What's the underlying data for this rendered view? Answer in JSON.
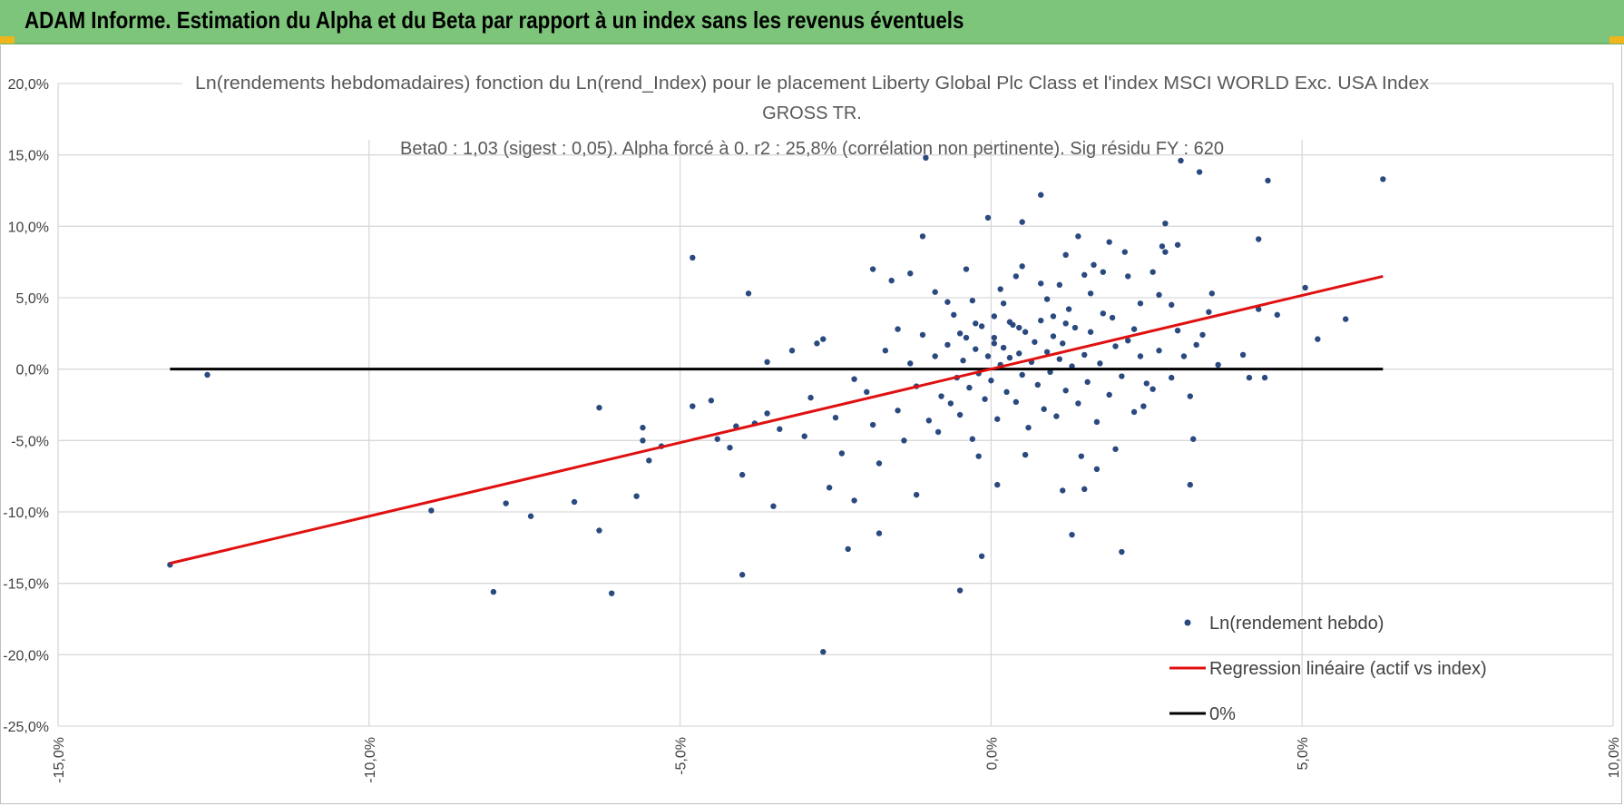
{
  "header": {
    "title": "ADAM Informe. Estimation du Alpha et du Beta par rapport à un index sans les revenus éventuels"
  },
  "colors": {
    "header_bg": "#7dc57a",
    "points": "#2a4a7f",
    "regression": "#e01010",
    "zero_line": "#000000",
    "grid": "#d9d9d9"
  },
  "chart_data": {
    "type": "scatter",
    "title_lines": [
      "Ln(rendements hebdomadaires) fonction du Ln(rend_Index) pour le placement Liberty Global Plc Class  et l'index MSCI  WORLD Exc. USA Index",
      "GROSS TR.",
      "Beta0 : 1,03  (sigest : 0,05). Alpha forcé à 0. r2 : 25,8% (corrélation non pertinente). Sig résidu FY : 620"
    ],
    "xlim": [
      -15,
      10
    ],
    "ylim": [
      -25,
      20
    ],
    "x_ticks": [
      -15,
      -10,
      -5,
      0,
      5,
      10
    ],
    "y_ticks": [
      20,
      15,
      10,
      5,
      0,
      -5,
      -10,
      -15,
      -20,
      -25
    ],
    "x_tick_labels": [
      "-15,0%",
      "-10,0%",
      "-5,0%",
      "0,0%",
      "5,0%",
      "10,0%"
    ],
    "y_tick_labels": [
      "20,0%",
      "15,0%",
      "10,0%",
      "5,0%",
      "0,0%",
      "-5,0%",
      "-10,0%",
      "-15,0%",
      "-20,0%",
      "-25,0%"
    ],
    "unit": "%",
    "grid": true,
    "legend_position": "bottom-right",
    "series": [
      {
        "name": "Ln(rendement hebdo)",
        "kind": "points",
        "points": [
          [
            -13.2,
            -13.7
          ],
          [
            -12.6,
            -0.4
          ],
          [
            -9.0,
            -9.9
          ],
          [
            -7.8,
            -9.4
          ],
          [
            -7.4,
            -10.3
          ],
          [
            -8.0,
            -15.6
          ],
          [
            -6.7,
            -9.3
          ],
          [
            -6.3,
            -2.7
          ],
          [
            -6.3,
            -11.3
          ],
          [
            -6.1,
            -15.7
          ],
          [
            -5.6,
            -4.1
          ],
          [
            -5.6,
            -5.0
          ],
          [
            -5.5,
            -6.4
          ],
          [
            -5.7,
            -8.9
          ],
          [
            -5.3,
            -5.4
          ],
          [
            -4.8,
            7.8
          ],
          [
            -4.8,
            -2.6
          ],
          [
            -4.5,
            -2.2
          ],
          [
            -4.4,
            -4.9
          ],
          [
            -4.2,
            -5.5
          ],
          [
            -4.1,
            -4.0
          ],
          [
            -4.0,
            -7.4
          ],
          [
            -4.0,
            -14.4
          ],
          [
            -3.9,
            5.3
          ],
          [
            -3.6,
            -3.1
          ],
          [
            -3.6,
            0.5
          ],
          [
            -3.5,
            -9.6
          ],
          [
            -3.2,
            1.3
          ],
          [
            -2.8,
            1.8
          ],
          [
            -2.7,
            2.1
          ],
          [
            -2.6,
            -8.3
          ],
          [
            -2.7,
            -19.8
          ],
          [
            -2.3,
            -12.6
          ],
          [
            -2.2,
            -9.2
          ],
          [
            -1.8,
            -11.5
          ],
          [
            -1.9,
            7.0
          ],
          [
            -1.6,
            6.2
          ],
          [
            -1.5,
            2.8
          ],
          [
            -1.3,
            6.7
          ],
          [
            -1.2,
            -8.8
          ],
          [
            -1.1,
            9.3
          ],
          [
            -1.05,
            14.8
          ],
          [
            -0.9,
            5.4
          ],
          [
            -0.7,
            4.7
          ],
          [
            -0.5,
            2.5
          ],
          [
            -0.4,
            7.0
          ],
          [
            -0.2,
            -6.1
          ],
          [
            -0.15,
            -13.1
          ],
          [
            -0.5,
            -15.5
          ],
          [
            -0.3,
            4.8
          ],
          [
            -0.25,
            3.2
          ],
          [
            -0.05,
            10.6
          ],
          [
            0.05,
            1.8
          ],
          [
            0.1,
            -8.1
          ],
          [
            0.05,
            3.7
          ],
          [
            0.15,
            5.6
          ],
          [
            0.2,
            4.6
          ],
          [
            0.3,
            3.3
          ],
          [
            0.4,
            6.5
          ],
          [
            0.45,
            2.9
          ],
          [
            0.5,
            7.2
          ],
          [
            0.5,
            10.3
          ],
          [
            0.55,
            -6.0
          ],
          [
            0.8,
            6.0
          ],
          [
            0.8,
            12.2
          ],
          [
            0.9,
            4.9
          ],
          [
            1.0,
            3.7
          ],
          [
            1.1,
            5.9
          ],
          [
            1.15,
            -8.5
          ],
          [
            1.2,
            3.2
          ],
          [
            1.2,
            8.0
          ],
          [
            1.3,
            -11.6
          ],
          [
            1.4,
            9.3
          ],
          [
            1.45,
            -6.1
          ],
          [
            1.5,
            6.6
          ],
          [
            1.5,
            -8.4
          ],
          [
            1.6,
            5.3
          ],
          [
            1.65,
            7.3
          ],
          [
            1.7,
            -7.0
          ],
          [
            1.8,
            6.8
          ],
          [
            1.9,
            8.9
          ],
          [
            1.95,
            3.6
          ],
          [
            2.0,
            -5.6
          ],
          [
            2.1,
            -12.8
          ],
          [
            2.15,
            8.2
          ],
          [
            2.2,
            6.5
          ],
          [
            2.3,
            2.8
          ],
          [
            2.4,
            4.6
          ],
          [
            2.45,
            -2.6
          ],
          [
            2.5,
            -1.0
          ],
          [
            2.6,
            6.8
          ],
          [
            2.7,
            5.2
          ],
          [
            2.75,
            8.6
          ],
          [
            2.8,
            10.2
          ],
          [
            2.8,
            8.2
          ],
          [
            2.9,
            4.5
          ],
          [
            3.0,
            8.7
          ],
          [
            3.05,
            14.6
          ],
          [
            3.1,
            0.9
          ],
          [
            3.2,
            -8.1
          ],
          [
            3.25,
            -4.9
          ],
          [
            3.35,
            13.8
          ],
          [
            3.4,
            2.4
          ],
          [
            3.5,
            4.0
          ],
          [
            3.55,
            5.3
          ],
          [
            3.65,
            0.3
          ],
          [
            4.05,
            1.0
          ],
          [
            4.15,
            -0.6
          ],
          [
            4.3,
            9.1
          ],
          [
            4.3,
            4.2
          ],
          [
            4.4,
            -0.6
          ],
          [
            4.45,
            13.2
          ],
          [
            4.6,
            3.8
          ],
          [
            5.05,
            5.7
          ],
          [
            5.25,
            2.1
          ],
          [
            5.7,
            3.5
          ],
          [
            6.3,
            13.3
          ],
          [
            -3.8,
            -3.8
          ],
          [
            -3.4,
            -4.2
          ],
          [
            -3.0,
            -4.7
          ],
          [
            -2.9,
            -2.0
          ],
          [
            -2.5,
            -3.4
          ],
          [
            -2.4,
            -5.9
          ],
          [
            -2.2,
            -0.7
          ],
          [
            -2.0,
            -1.6
          ],
          [
            -1.9,
            -3.9
          ],
          [
            -1.8,
            -6.6
          ],
          [
            -1.7,
            1.3
          ],
          [
            -1.5,
            -2.9
          ],
          [
            -1.4,
            -5.0
          ],
          [
            -1.3,
            0.4
          ],
          [
            -1.2,
            -1.2
          ],
          [
            -1.1,
            2.4
          ],
          [
            -1.0,
            -3.6
          ],
          [
            -0.9,
            0.9
          ],
          [
            -0.85,
            -4.4
          ],
          [
            -0.8,
            -1.9
          ],
          [
            -0.7,
            1.7
          ],
          [
            -0.65,
            -2.4
          ],
          [
            -0.6,
            3.8
          ],
          [
            -0.55,
            -0.6
          ],
          [
            -0.5,
            -3.2
          ],
          [
            -0.45,
            0.6
          ],
          [
            -0.4,
            2.2
          ],
          [
            -0.35,
            -1.3
          ],
          [
            -0.3,
            -4.9
          ],
          [
            -0.25,
            1.4
          ],
          [
            -0.2,
            -0.3
          ],
          [
            -0.15,
            3.0
          ],
          [
            -0.1,
            -2.1
          ],
          [
            -0.05,
            0.9
          ],
          [
            0.0,
            -0.8
          ],
          [
            0.05,
            2.2
          ],
          [
            0.1,
            -3.5
          ],
          [
            0.15,
            0.3
          ],
          [
            0.2,
            1.5
          ],
          [
            0.25,
            -1.6
          ],
          [
            0.3,
            0.8
          ],
          [
            0.35,
            3.1
          ],
          [
            0.4,
            -2.3
          ],
          [
            0.45,
            1.1
          ],
          [
            0.5,
            -0.4
          ],
          [
            0.55,
            2.6
          ],
          [
            0.6,
            -4.1
          ],
          [
            0.65,
            0.5
          ],
          [
            0.7,
            1.9
          ],
          [
            0.75,
            -1.1
          ],
          [
            0.8,
            3.4
          ],
          [
            0.85,
            -2.8
          ],
          [
            0.9,
            1.2
          ],
          [
            0.95,
            -0.2
          ],
          [
            1.0,
            2.3
          ],
          [
            1.05,
            -3.3
          ],
          [
            1.1,
            0.7
          ],
          [
            1.15,
            1.8
          ],
          [
            1.2,
            -1.5
          ],
          [
            1.25,
            4.2
          ],
          [
            1.3,
            0.2
          ],
          [
            1.35,
            2.9
          ],
          [
            1.4,
            -2.4
          ],
          [
            1.5,
            1.0
          ],
          [
            1.55,
            -0.9
          ],
          [
            1.6,
            2.6
          ],
          [
            1.7,
            -3.7
          ],
          [
            1.75,
            0.4
          ],
          [
            1.8,
            3.9
          ],
          [
            1.9,
            -1.8
          ],
          [
            2.0,
            1.6
          ],
          [
            2.1,
            -0.5
          ],
          [
            2.2,
            2.0
          ],
          [
            2.3,
            -3.0
          ],
          [
            2.4,
            0.9
          ],
          [
            2.6,
            -1.4
          ],
          [
            2.7,
            1.3
          ],
          [
            2.9,
            -0.6
          ],
          [
            3.0,
            2.7
          ],
          [
            3.2,
            -1.9
          ],
          [
            3.3,
            1.7
          ]
        ]
      },
      {
        "name": "Regression linéaire (actif vs index)",
        "kind": "line",
        "x": [
          -13.2,
          6.3
        ],
        "y": [
          -13.6,
          6.5
        ]
      },
      {
        "name": "0%",
        "kind": "line",
        "x": [
          -13.2,
          6.3
        ],
        "y": [
          0,
          0
        ]
      }
    ]
  }
}
